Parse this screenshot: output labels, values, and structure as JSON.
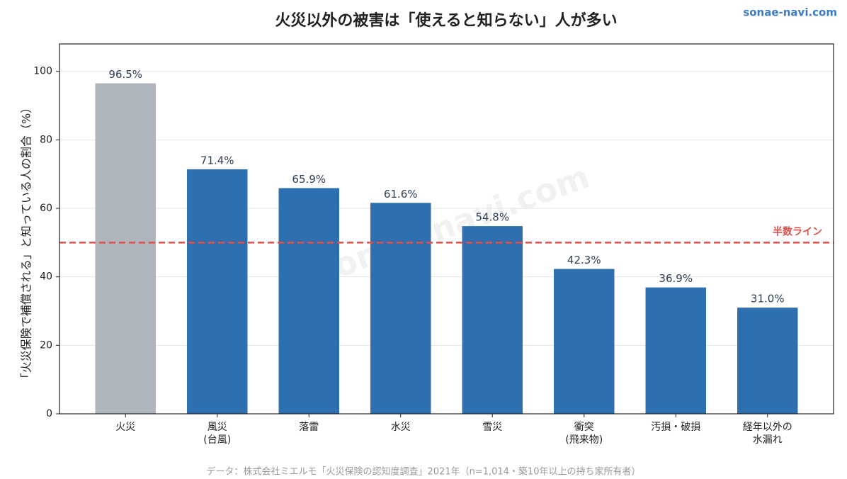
{
  "chart_data": {
    "type": "bar",
    "title": "火災以外の被害は「使えると知らない」人が多い",
    "site": "sonae-navi.com",
    "watermark": "sonae-navi.com",
    "y_label": "「火災保険で補償される」と知っている人の割合（%）",
    "source": "データ：株式会社ミエルモ「火災保険の認知度調査」2021年（n=1,014・築10年以上の持ち家所有者）",
    "categories": [
      "火災",
      "風災\n(台風)",
      "落雷",
      "水災",
      "雪災",
      "衝突\n(飛来物)",
      "汚損・破損",
      "経年以外の\n水漏れ"
    ],
    "values": [
      96.5,
      71.4,
      65.9,
      61.6,
      54.8,
      42.3,
      36.9,
      31.0
    ],
    "value_labels": [
      "96.5%",
      "71.4%",
      "65.9%",
      "61.6%",
      "54.8%",
      "42.3%",
      "36.9%",
      "31.0%"
    ],
    "colors": [
      "#aeb5bd",
      "#2e6fb0",
      "#2e6fb0",
      "#2e6fb0",
      "#2e6fb0",
      "#2e6fb0",
      "#2e6fb0",
      "#2e6fb0"
    ],
    "ylim": [
      0,
      108
    ],
    "yticks": [
      0,
      20,
      40,
      60,
      80,
      100
    ],
    "grid": true,
    "reference_line": {
      "value": 50,
      "label": "半数ライン",
      "color": "#d9534f"
    }
  }
}
